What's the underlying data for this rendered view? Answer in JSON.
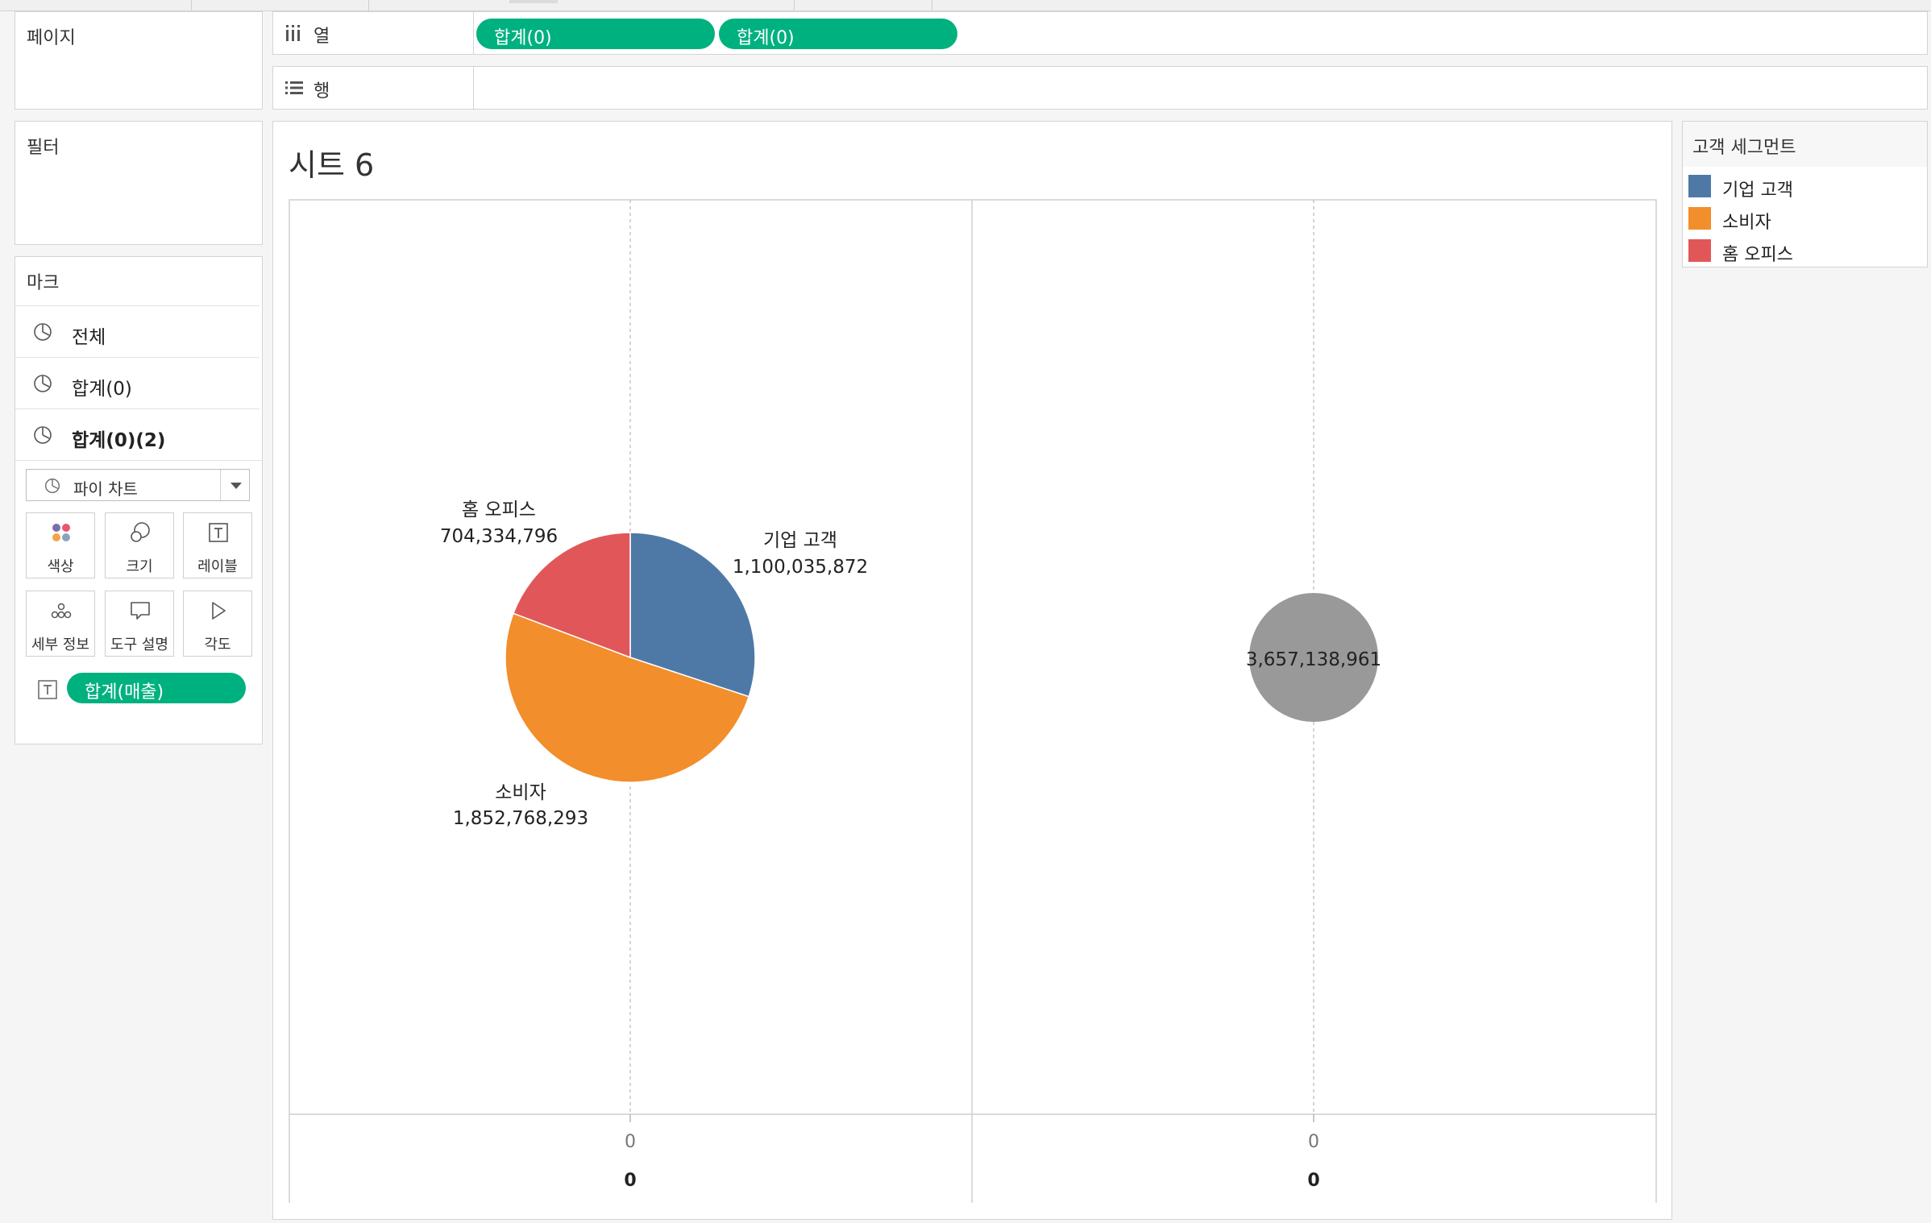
{
  "side": {
    "pages_title": "페이지",
    "filters_title": "필터",
    "marks_title": "마크"
  },
  "marks": {
    "rows": [
      {
        "label": "전체",
        "icon": "pie-chart-icon"
      },
      {
        "label": "합계(0)",
        "icon": "pie-chart-icon"
      },
      {
        "label": "합계(0)(2)",
        "icon": "pie-chart-icon"
      }
    ],
    "mark_type": "파이 차트",
    "buttons": {
      "color": "색상",
      "size": "크기",
      "label": "레이블",
      "detail": "세부 정보",
      "tooltip": "도구 설명",
      "angle": "각도"
    },
    "label_pill": "합계(매출)"
  },
  "shelves": {
    "columns_label": "열",
    "rows_label": "행",
    "columns_pills": [
      "합계(0)",
      "합계(0)"
    ]
  },
  "sheet": {
    "title": "시트 6"
  },
  "legend": {
    "title": "고객 세그먼트",
    "items": [
      {
        "label": "기업 고객",
        "color": "#4e79a7"
      },
      {
        "label": "소비자",
        "color": "#f28e2b"
      },
      {
        "label": "홈 오피스",
        "color": "#e15759"
      }
    ]
  },
  "chart_data": {
    "type": "pie",
    "panes": [
      {
        "slices": [
          {
            "label": "기업 고객",
            "value_label": "1,100,035,872",
            "value": 1100035872,
            "color": "#4e79a7"
          },
          {
            "label": "소비자",
            "value_label": "1,852,768,293",
            "value": 1852768293,
            "color": "#f28e2b"
          },
          {
            "label": "홈 오피스",
            "value_label": "704,334,796",
            "value": 704334796,
            "color": "#e15759"
          }
        ],
        "axis_tick": "0",
        "axis_label": "0"
      },
      {
        "slices": [
          {
            "label": "",
            "value_label": "3,657,138,961",
            "value": 3657138961,
            "color": "#999999"
          }
        ],
        "axis_tick": "0",
        "axis_label": "0"
      }
    ]
  }
}
